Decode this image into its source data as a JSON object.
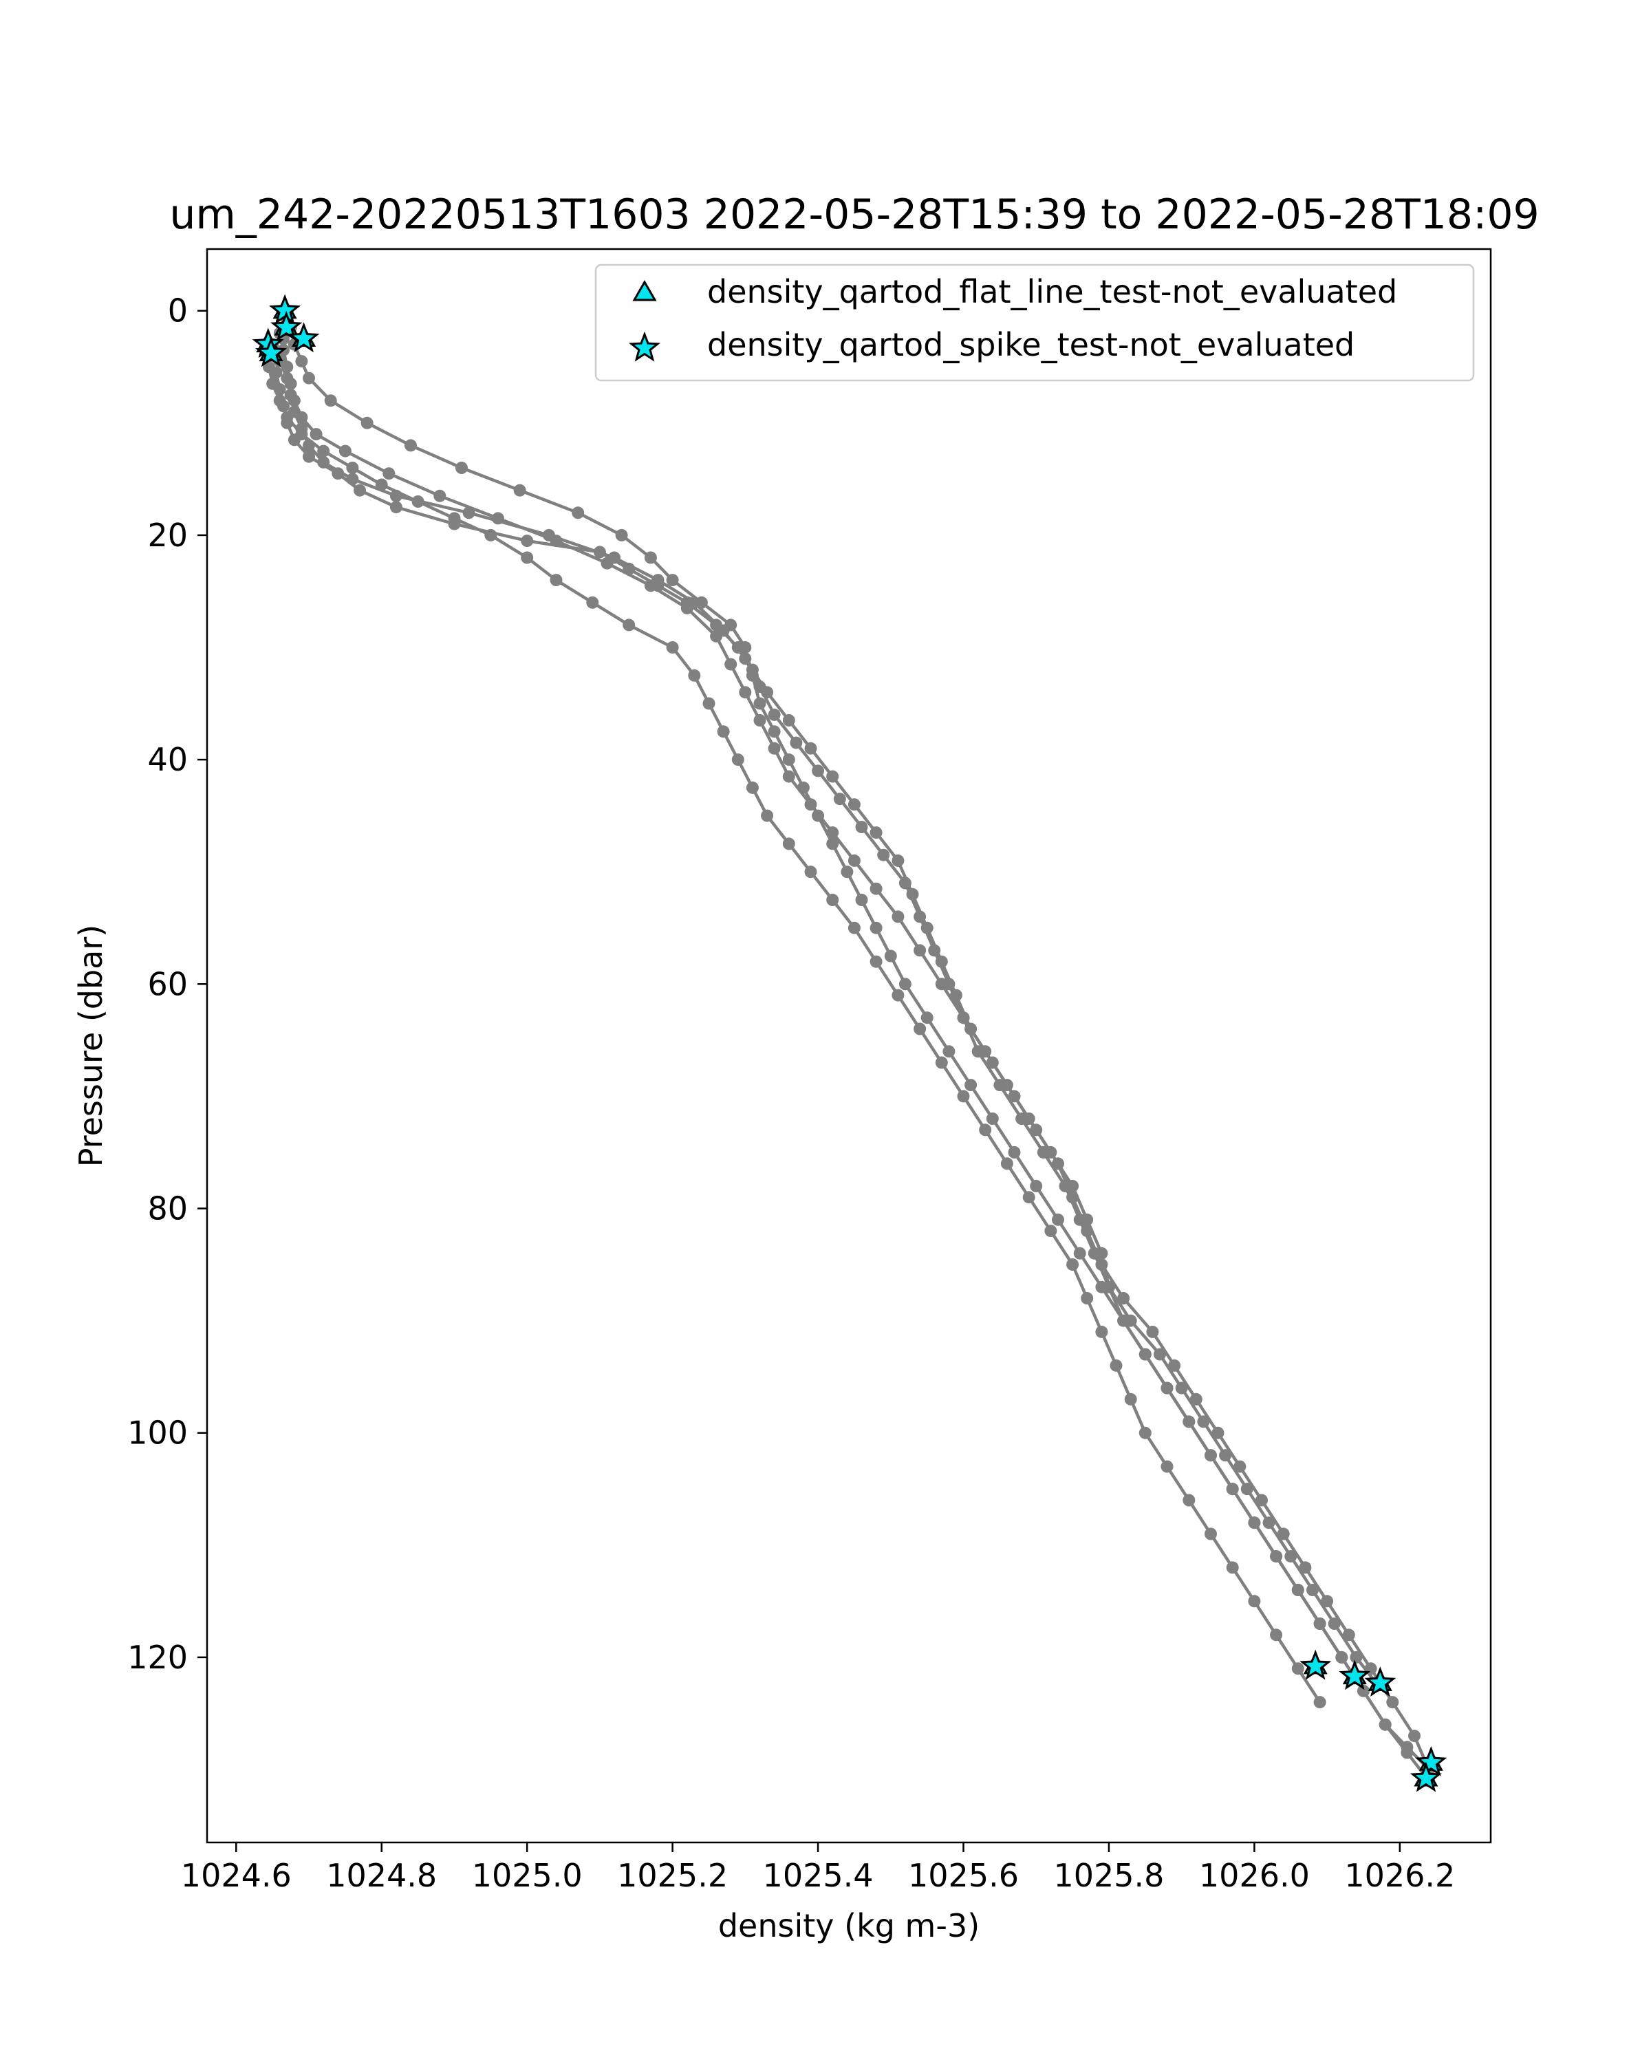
{
  "chart_data": {
    "type": "scatter",
    "title": "um_242-20220513T1603 2022-05-28T15:39 to 2022-05-28T18:09",
    "xlabel": "density (kg m-3)",
    "ylabel": "Pressure (dbar)",
    "xlim": [
      1024.56,
      1026.325
    ],
    "ylim": [
      136.5,
      -5.5
    ],
    "y_inverted": true,
    "grid": false,
    "legend_position": "top-right",
    "xticks": [
      1024.6,
      1024.8,
      1025.0,
      1025.2,
      1025.4,
      1025.6,
      1025.8,
      1026.0,
      1026.2
    ],
    "xtick_labels": [
      "1024.6",
      "1024.8",
      "1025.0",
      "1025.2",
      "1025.4",
      "1025.6",
      "1025.8",
      "1026.0",
      "1026.2"
    ],
    "yticks": [
      0,
      20,
      40,
      60,
      80,
      100,
      120
    ],
    "ytick_labels": [
      "0",
      "20",
      "40",
      "60",
      "80",
      "100",
      "120"
    ],
    "colors": {
      "profile": "#808080",
      "marker_fill": "#00e5ee",
      "marker_edge": "#000000"
    },
    "legend": [
      {
        "label": "density_qartod_flat_line_test-not_evaluated",
        "marker": "triangle"
      },
      {
        "label": "density_qartod_spike_test-not_evaluated",
        "marker": "star"
      }
    ],
    "series": [
      {
        "x": [
          1024.67,
          1024.665,
          1024.66,
          1024.655,
          1024.66,
          1024.665,
          1024.67,
          1024.68,
          1024.7,
          1024.74,
          1024.77,
          1024.82,
          1024.9,
          1025.0,
          1025.1,
          1025.14,
          1025.18,
          1025.22,
          1025.26,
          1025.29,
          1025.31,
          1025.33,
          1025.36,
          1025.39,
          1025.42,
          1025.45,
          1025.48,
          1025.51,
          1025.53,
          1025.55,
          1025.57,
          1025.59,
          1025.61,
          1025.64,
          1025.67,
          1025.7,
          1025.73,
          1025.75,
          1025.77,
          1025.79,
          1025.82,
          1025.86,
          1025.89,
          1025.92,
          1025.95,
          1025.98,
          1026.01,
          1026.04,
          1026.07,
          1026.1,
          1026.13,
          1026.16,
          1026.19,
          1026.22,
          1026.24
        ],
        "y": [
          1.0,
          2.5,
          4.0,
          5.5,
          7.0,
          8.5,
          10.0,
          11.5,
          13.0,
          14.5,
          16.0,
          17.5,
          19.0,
          20.5,
          21.5,
          23.0,
          24.5,
          26.0,
          28.0,
          30.0,
          32.0,
          34.0,
          36.5,
          39.0,
          41.5,
          44.0,
          46.5,
          49.0,
          52.0,
          55.0,
          58.0,
          61.0,
          64.0,
          67.0,
          70.0,
          73.0,
          76.0,
          79.0,
          82.0,
          85.0,
          88.0,
          91.0,
          94.0,
          97.0,
          100.0,
          103.0,
          106.0,
          109.0,
          112.0,
          115.0,
          118.0,
          121.0,
          124.0,
          127.0,
          130.0
        ]
      },
      {
        "x": [
          1024.65,
          1024.66,
          1024.67,
          1024.675,
          1024.68,
          1024.69,
          1024.7,
          1024.72,
          1024.76,
          1024.82,
          1024.92,
          1025.03,
          1025.12,
          1025.18,
          1025.23,
          1025.27,
          1025.3,
          1025.32,
          1025.34,
          1025.37,
          1025.4,
          1025.43,
          1025.46,
          1025.49,
          1025.52,
          1025.54,
          1025.56,
          1025.58,
          1025.6,
          1025.62,
          1025.65,
          1025.68,
          1025.71,
          1025.74,
          1025.76,
          1025.78,
          1025.8,
          1025.83,
          1025.87,
          1025.9,
          1025.93,
          1025.96,
          1025.99,
          1026.02,
          1026.05,
          1026.08,
          1026.11,
          1026.14,
          1026.17
        ],
        "y": [
          3.0,
          4.5,
          6.0,
          7.5,
          9.0,
          10.5,
          12.0,
          13.5,
          15.0,
          16.5,
          18.0,
          20.0,
          22.0,
          24.0,
          26.0,
          28.5,
          31.0,
          33.5,
          36.0,
          38.5,
          41.0,
          43.5,
          46.0,
          48.5,
          51.0,
          54.0,
          57.0,
          60.0,
          63.0,
          66.0,
          69.0,
          72.0,
          75.0,
          78.0,
          81.0,
          84.0,
          87.0,
          90.0,
          93.0,
          96.0,
          99.0,
          102.0,
          105.0,
          108.0,
          111.0,
          114.0,
          117.0,
          120.0,
          122.5
        ]
      },
      {
        "x": [
          1024.66,
          1024.665,
          1024.67,
          1024.675,
          1024.68,
          1024.69,
          1024.71,
          1024.75,
          1024.81,
          1024.88,
          1024.96,
          1025.04,
          1025.11,
          1025.17,
          1025.22,
          1025.26,
          1025.28,
          1025.3,
          1025.32,
          1025.34,
          1025.36,
          1025.39,
          1025.42,
          1025.45,
          1025.48,
          1025.51,
          1025.54,
          1025.57,
          1025.6,
          1025.63,
          1025.66,
          1025.69,
          1025.72,
          1025.75,
          1025.77,
          1025.79,
          1025.8,
          1025.82,
          1025.85,
          1025.88,
          1025.91,
          1025.94,
          1025.97,
          1026.0,
          1026.03,
          1026.06,
          1026.09,
          1026.12,
          1026.15,
          1026.18,
          1026.21,
          1026.24
        ],
        "y": [
          2.0,
          3.5,
          5.0,
          6.5,
          8.0,
          9.5,
          11.0,
          12.5,
          14.5,
          16.5,
          18.5,
          20.5,
          22.5,
          24.5,
          26.5,
          29.0,
          31.5,
          34.0,
          36.5,
          39.0,
          41.5,
          44.0,
          46.5,
          49.0,
          51.5,
          54.0,
          57.0,
          60.0,
          63.0,
          66.0,
          69.0,
          72.0,
          75.0,
          78.0,
          81.0,
          84.0,
          87.0,
          90.0,
          93.0,
          96.0,
          99.0,
          102.0,
          105.0,
          108.0,
          111.0,
          114.0,
          117.0,
          120.0,
          123.0,
          126.0,
          128.5,
          131.0
        ]
      },
      {
        "x": [
          1024.64,
          1024.645,
          1024.65,
          1024.66,
          1024.67,
          1024.69,
          1024.72,
          1024.76,
          1024.8,
          1024.85,
          1024.9,
          1024.95,
          1025.0,
          1025.04,
          1025.09,
          1025.14,
          1025.2,
          1025.23,
          1025.25,
          1025.27,
          1025.29,
          1025.31,
          1025.33,
          1025.36,
          1025.39,
          1025.42,
          1025.45,
          1025.48,
          1025.51,
          1025.54,
          1025.57,
          1025.6,
          1025.63,
          1025.66,
          1025.69,
          1025.72,
          1025.75,
          1025.77,
          1025.79,
          1025.81,
          1025.83,
          1025.85,
          1025.88,
          1025.91,
          1025.94,
          1025.97,
          1026.0,
          1026.03,
          1026.06,
          1026.09
        ],
        "y": [
          3.5,
          5.0,
          6.5,
          8.0,
          9.5,
          11.0,
          12.5,
          14.0,
          15.5,
          17.0,
          18.5,
          20.0,
          22.0,
          24.0,
          26.0,
          28.0,
          30.0,
          32.5,
          35.0,
          37.5,
          40.0,
          42.5,
          45.0,
          47.5,
          50.0,
          52.5,
          55.0,
          58.0,
          61.0,
          64.0,
          67.0,
          70.0,
          73.0,
          76.0,
          79.0,
          82.0,
          85.0,
          88.0,
          91.0,
          94.0,
          97.0,
          100.0,
          103.0,
          106.0,
          109.0,
          112.0,
          115.0,
          118.0,
          121.0,
          124.0
        ]
      },
      {
        "x": [
          1024.67,
          1024.675,
          1024.68,
          1024.69,
          1024.7,
          1024.73,
          1024.78,
          1024.84,
          1024.91,
          1024.99,
          1025.07,
          1025.13,
          1025.17,
          1025.2,
          1025.24,
          1025.28,
          1025.3,
          1025.31,
          1025.32,
          1025.34,
          1025.36,
          1025.38,
          1025.4,
          1025.42,
          1025.44,
          1025.46,
          1025.48,
          1025.5,
          1025.52,
          1025.55,
          1025.58,
          1025.61,
          1025.64,
          1025.67,
          1025.7,
          1025.73,
          1025.76,
          1025.79,
          1025.82,
          1025.85,
          1025.88,
          1025.91,
          1025.94,
          1025.97,
          1026.0,
          1026.03,
          1026.06,
          1026.09,
          1026.12,
          1026.15,
          1026.18,
          1026.21,
          1026.24
        ],
        "y": [
          0.0,
          1.5,
          3.0,
          4.5,
          6.0,
          8.0,
          10.0,
          12.0,
          14.0,
          16.0,
          18.0,
          20.0,
          22.0,
          24.0,
          26.0,
          28.0,
          30.0,
          32.5,
          35.0,
          37.5,
          40.0,
          42.5,
          45.0,
          47.5,
          50.0,
          52.5,
          55.0,
          57.5,
          60.0,
          63.0,
          66.0,
          69.0,
          72.0,
          75.0,
          78.0,
          81.0,
          84.0,
          87.0,
          90.0,
          93.0,
          96.0,
          99.0,
          102.0,
          105.0,
          108.0,
          111.0,
          114.0,
          117.0,
          120.0,
          123.0,
          126.0,
          128.0,
          130.0
        ]
      }
    ],
    "flagged_points": [
      {
        "test": "flat_line",
        "x": 1024.667,
        "y": 0.0
      },
      {
        "test": "flat_line",
        "x": 1024.669,
        "y": 1.5
      },
      {
        "test": "flat_line",
        "x": 1024.644,
        "y": 3.0
      },
      {
        "test": "flat_line",
        "x": 1024.648,
        "y": 3.8
      },
      {
        "test": "flat_line",
        "x": 1024.693,
        "y": 2.5
      },
      {
        "test": "flat_line",
        "x": 1026.084,
        "y": 120.8
      },
      {
        "test": "flat_line",
        "x": 1026.138,
        "y": 121.7
      },
      {
        "test": "flat_line",
        "x": 1026.173,
        "y": 122.3
      },
      {
        "test": "flat_line",
        "x": 1026.243,
        "y": 129.4
      },
      {
        "test": "flat_line",
        "x": 1026.236,
        "y": 130.8
      },
      {
        "test": "spike",
        "x": 1024.667,
        "y": 0.0
      },
      {
        "test": "spike",
        "x": 1024.669,
        "y": 1.5
      },
      {
        "test": "spike",
        "x": 1024.644,
        "y": 3.0
      },
      {
        "test": "spike",
        "x": 1024.648,
        "y": 3.8
      },
      {
        "test": "spike",
        "x": 1024.693,
        "y": 2.5
      },
      {
        "test": "spike",
        "x": 1026.084,
        "y": 120.8
      },
      {
        "test": "spike",
        "x": 1026.138,
        "y": 121.7
      },
      {
        "test": "spike",
        "x": 1026.173,
        "y": 122.3
      },
      {
        "test": "spike",
        "x": 1026.243,
        "y": 129.4
      },
      {
        "test": "spike",
        "x": 1026.236,
        "y": 130.8
      }
    ]
  }
}
